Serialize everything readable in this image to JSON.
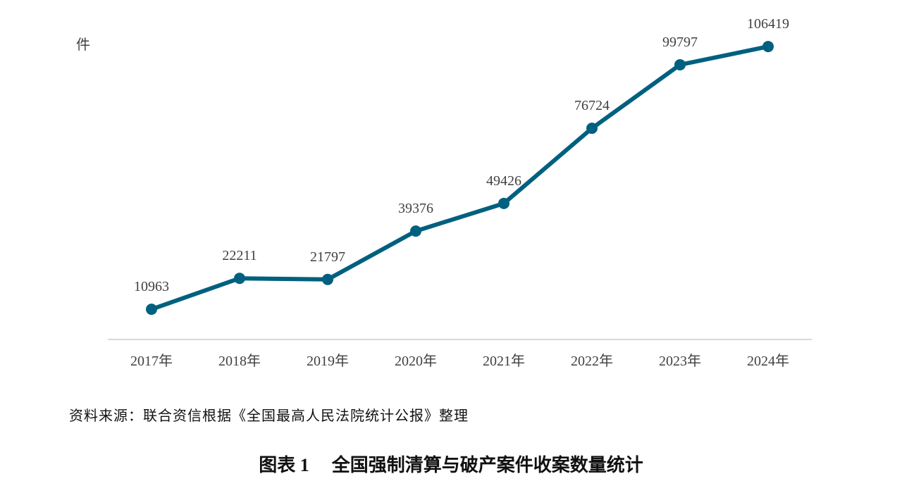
{
  "chart_data": {
    "type": "line",
    "ylabel": "件",
    "categories": [
      "2017年",
      "2018年",
      "2019年",
      "2020年",
      "2021年",
      "2022年",
      "2023年",
      "2024年"
    ],
    "values": [
      10963,
      22211,
      21797,
      39376,
      49426,
      76724,
      99797,
      106419
    ],
    "data_labels": [
      "10963",
      "22211",
      "21797",
      "39376",
      "49426",
      "76724",
      "99797",
      "106419"
    ],
    "ylim": [
      0,
      120000
    ],
    "grid": false,
    "legend": "none",
    "line_color": "#00607f",
    "text_color": "#404040",
    "axis_color": "#d9d9d9"
  },
  "source": "资料来源：联合资信根据《全国最高人民法院统计公报》整理",
  "caption": {
    "number": "图表 1",
    "title": "全国强制清算与破产案件收案数量统计"
  }
}
